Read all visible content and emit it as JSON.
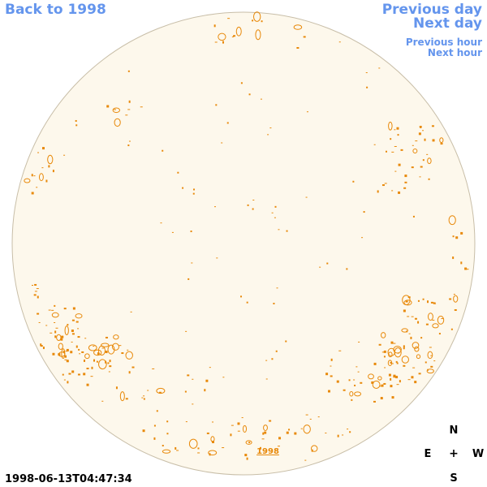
{
  "navigation": {
    "back_label": "Back to 1998",
    "previous_day_label": "Previous day",
    "next_day_label": "Next day",
    "previous_hour_label": "Previous hour",
    "next_hour_label": "Next hour"
  },
  "timestamp": "1998-06-13T04:47:34",
  "year_marker": "1998",
  "compass": {
    "north": "N",
    "south": "S",
    "east": "E",
    "west": "W",
    "center": "+"
  },
  "colors": {
    "link": "#6495ED",
    "disk_fill": "#FDF8EC",
    "disk_outline": "#C8BEA8",
    "feature": "#E8890A",
    "text": "#000000"
  }
}
